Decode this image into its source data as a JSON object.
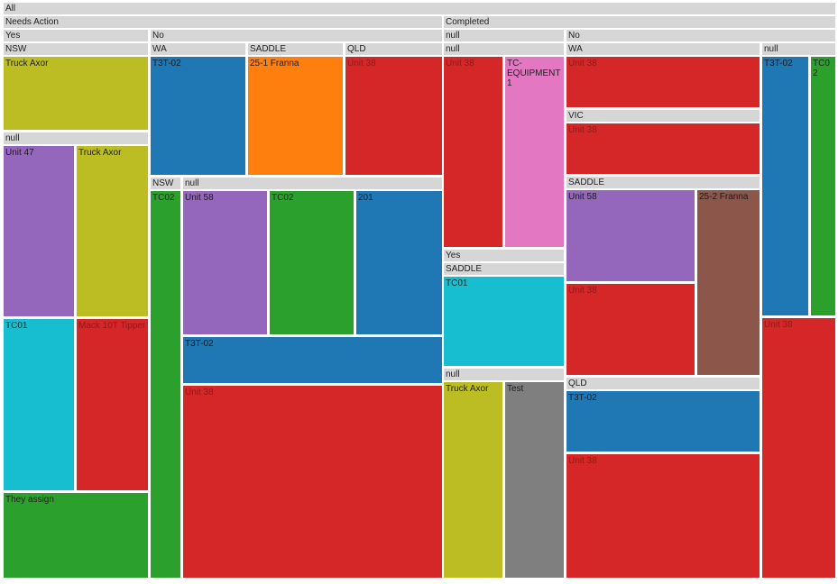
{
  "colors": {
    "olive": "#bcbd22",
    "blue": "#1f77b4",
    "orange": "#ff7f0e",
    "red": "#d62728",
    "pink": "#e377c2",
    "purple": "#9467bd",
    "green": "#2ca02c",
    "cyan": "#17becf",
    "brown": "#8c564b",
    "gray": "#7f7f7f"
  },
  "chart_data": {
    "type": "treemap",
    "root": {
      "label": "All",
      "children": [
        {
          "label": "Needs Action",
          "children": [
            {
              "label": "Yes",
              "children": [
                {
                  "label": "NSW",
                  "children": [
                    {
                      "label": "Truck Axor",
                      "color": "olive"
                    }
                  ]
                },
                {
                  "label": "null",
                  "children": [
                    {
                      "label": "Unit 47",
                      "color": "purple"
                    },
                    {
                      "label": "Truck Axor",
                      "color": "olive"
                    },
                    {
                      "label": "TC01",
                      "color": "cyan"
                    },
                    {
                      "label": "Mack 10T Tipper",
                      "color": "red"
                    },
                    {
                      "label": "They assign",
                      "color": "green"
                    }
                  ]
                }
              ]
            },
            {
              "label": "No",
              "children": [
                {
                  "label": "WA",
                  "children": [
                    {
                      "label": "T3T-02",
                      "color": "blue"
                    }
                  ]
                },
                {
                  "label": "SADDLE",
                  "children": [
                    {
                      "label": "25-1 Franna",
                      "color": "orange"
                    }
                  ]
                },
                {
                  "label": "QLD",
                  "children": [
                    {
                      "label": "Unit 38",
                      "color": "red"
                    }
                  ]
                },
                {
                  "label": "NSW",
                  "children": [
                    {
                      "label": "TC02",
                      "color": "green"
                    }
                  ]
                },
                {
                  "label": "null",
                  "children": [
                    {
                      "label": "Unit 58",
                      "color": "purple"
                    },
                    {
                      "label": "TC02",
                      "color": "green"
                    },
                    {
                      "label": "201",
                      "color": "blue"
                    },
                    {
                      "label": "T3T-02",
                      "color": "blue"
                    },
                    {
                      "label": "Unit 38",
                      "color": "red"
                    }
                  ]
                }
              ]
            }
          ]
        },
        {
          "label": "Completed",
          "children": [
            {
              "label": "null",
              "children": [
                {
                  "label": "null",
                  "children": [
                    {
                      "label": "Unit 38",
                      "color": "red"
                    },
                    {
                      "label": "TC-EQUIPMENT1",
                      "color": "pink"
                    }
                  ]
                }
              ]
            },
            {
              "label": "Yes",
              "children": [
                {
                  "label": "SADDLE",
                  "children": [
                    {
                      "label": "TC01",
                      "color": "cyan"
                    }
                  ]
                },
                {
                  "label": "null",
                  "children": [
                    {
                      "label": "Truck Axor",
                      "color": "olive"
                    },
                    {
                      "label": "Test",
                      "color": "gray"
                    }
                  ]
                }
              ]
            },
            {
              "label": "No",
              "children": [
                {
                  "label": "WA",
                  "children": [
                    {
                      "label": "Unit 38",
                      "color": "red"
                    }
                  ]
                },
                {
                  "label": "VIC",
                  "children": [
                    {
                      "label": "Unit 38",
                      "color": "red"
                    }
                  ]
                },
                {
                  "label": "SADDLE",
                  "children": [
                    {
                      "label": "Unit 58",
                      "color": "purple"
                    },
                    {
                      "label": "25-2 Franna",
                      "color": "brown"
                    },
                    {
                      "label": "Unit 38",
                      "color": "red"
                    }
                  ]
                },
                {
                  "label": "QLD",
                  "children": [
                    {
                      "label": "T3T-02",
                      "color": "blue"
                    },
                    {
                      "label": "Unit 38",
                      "color": "red"
                    }
                  ]
                },
                {
                  "label": "null",
                  "children": [
                    {
                      "label": "T3T-02",
                      "color": "blue"
                    },
                    {
                      "label": "TC02",
                      "color": "green"
                    },
                    {
                      "label": "Unit 38",
                      "color": "red"
                    }
                  ]
                }
              ]
            }
          ]
        }
      ]
    }
  }
}
